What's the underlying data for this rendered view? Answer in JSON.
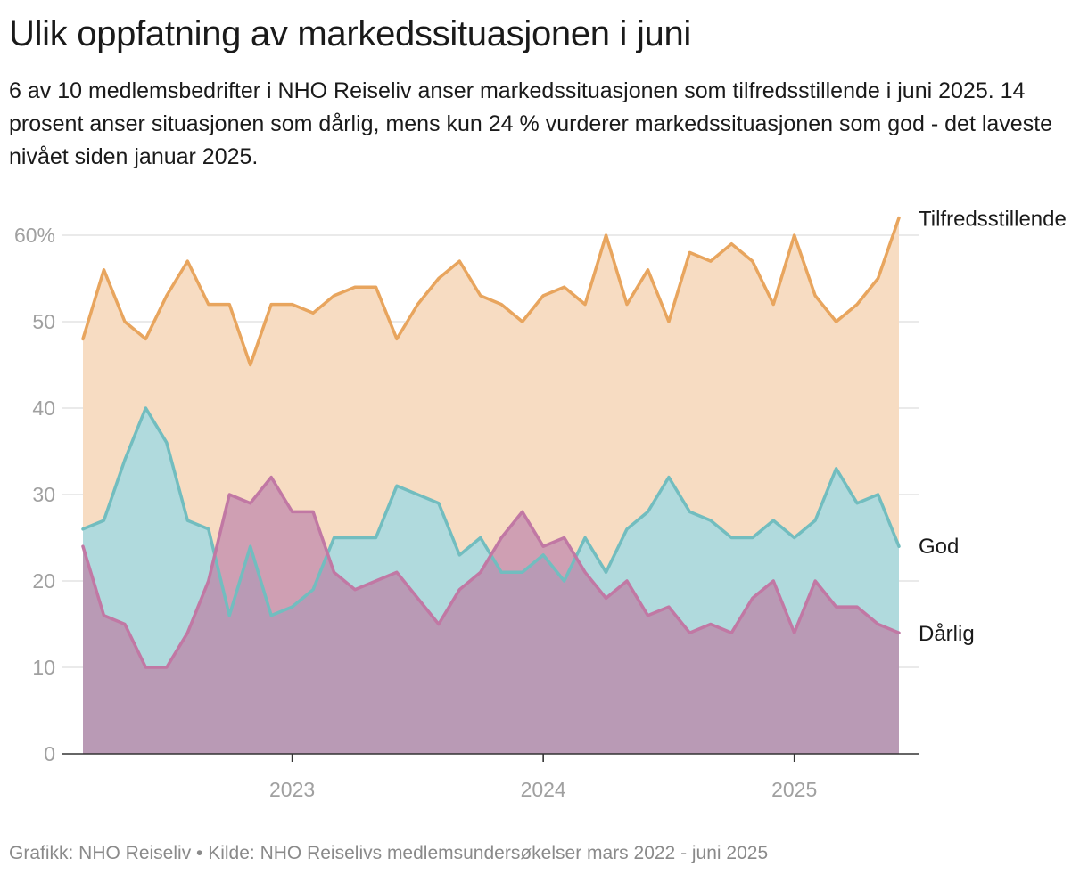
{
  "header": {
    "title": "Ulik oppfatning av markedssituasjonen i juni",
    "subtitle": "6 av 10 medlemsbedrifter i NHO Reiseliv anser markedssituasjonen som tilfredsstillende i juni 2025. 14 prosent anser situasjonen som dårlig, mens kun 24 % vurderer markedssituasjonen som god - det laveste nivået siden januar 2025."
  },
  "footer": {
    "text": "Grafikk: NHO Reiseliv • Kilde: NHO Reiselivs medlemsundersøkelser mars 2022 - juni 2025"
  },
  "colors": {
    "tilfreds_line": "#e8a55e",
    "tilfreds_fill": "#f7dcc2",
    "god_line": "#72bdbf",
    "god_fill": "#b0dadd",
    "darlig_line": "#c178a4",
    "darlig_fill": "#b99ab5",
    "darlig_over_god_fill": "#cf9fb3",
    "grid": "#e3e3e3",
    "tick_text": "#a0a0a0"
  },
  "chart_data": {
    "type": "area",
    "x": [
      "2022-03",
      "2022-04",
      "2022-05",
      "2022-06",
      "2022-07",
      "2022-08",
      "2022-09",
      "2022-10",
      "2022-11",
      "2022-12",
      "2023-01",
      "2023-02",
      "2023-03",
      "2023-04",
      "2023-05",
      "2023-06",
      "2023-07",
      "2023-08",
      "2023-09",
      "2023-10",
      "2023-11",
      "2023-12",
      "2024-01",
      "2024-02",
      "2024-03",
      "2024-04",
      "2024-05",
      "2024-06",
      "2024-07",
      "2024-08",
      "2024-09",
      "2024-10",
      "2024-11",
      "2024-12",
      "2025-01",
      "2025-02",
      "2025-03",
      "2025-04",
      "2025-05",
      "2025-06"
    ],
    "series": [
      {
        "name": "Tilfredsstillende",
        "values": [
          48,
          56,
          50,
          48,
          53,
          57,
          52,
          52,
          45,
          52,
          52,
          51,
          53,
          54,
          54,
          48,
          52,
          55,
          57,
          53,
          52,
          50,
          53,
          54,
          52,
          60,
          52,
          56,
          50,
          58,
          57,
          59,
          57,
          52,
          60,
          53,
          50,
          52,
          55,
          62
        ]
      },
      {
        "name": "God",
        "values": [
          26,
          27,
          34,
          40,
          36,
          27,
          26,
          16,
          24,
          16,
          17,
          19,
          25,
          25,
          25,
          31,
          30,
          29,
          23,
          25,
          21,
          21,
          23,
          20,
          25,
          21,
          26,
          28,
          32,
          28,
          27,
          25,
          25,
          27,
          25,
          27,
          33,
          29,
          30,
          24
        ]
      },
      {
        "name": "Dårlig",
        "values": [
          24,
          16,
          15,
          10,
          10,
          14,
          20,
          30,
          29,
          32,
          28,
          28,
          21,
          19,
          20,
          21,
          18,
          15,
          19,
          21,
          25,
          28,
          24,
          25,
          21,
          18,
          20,
          16,
          17,
          14,
          15,
          14,
          18,
          20,
          14,
          20,
          17,
          17,
          15,
          14
        ]
      }
    ],
    "y_ticks": [
      {
        "value": 0,
        "label": "0"
      },
      {
        "value": 10,
        "label": "10"
      },
      {
        "value": 20,
        "label": "20"
      },
      {
        "value": 30,
        "label": "30"
      },
      {
        "value": 40,
        "label": "40"
      },
      {
        "value": 50,
        "label": "50"
      },
      {
        "value": 60,
        "label": "60%"
      }
    ],
    "x_ticks": [
      {
        "x": "2023-01",
        "label": "2023"
      },
      {
        "x": "2024-01",
        "label": "2024"
      },
      {
        "x": "2025-01",
        "label": "2025"
      }
    ],
    "ylim": [
      0,
      62
    ],
    "grid": true,
    "legend": "inline-right"
  }
}
